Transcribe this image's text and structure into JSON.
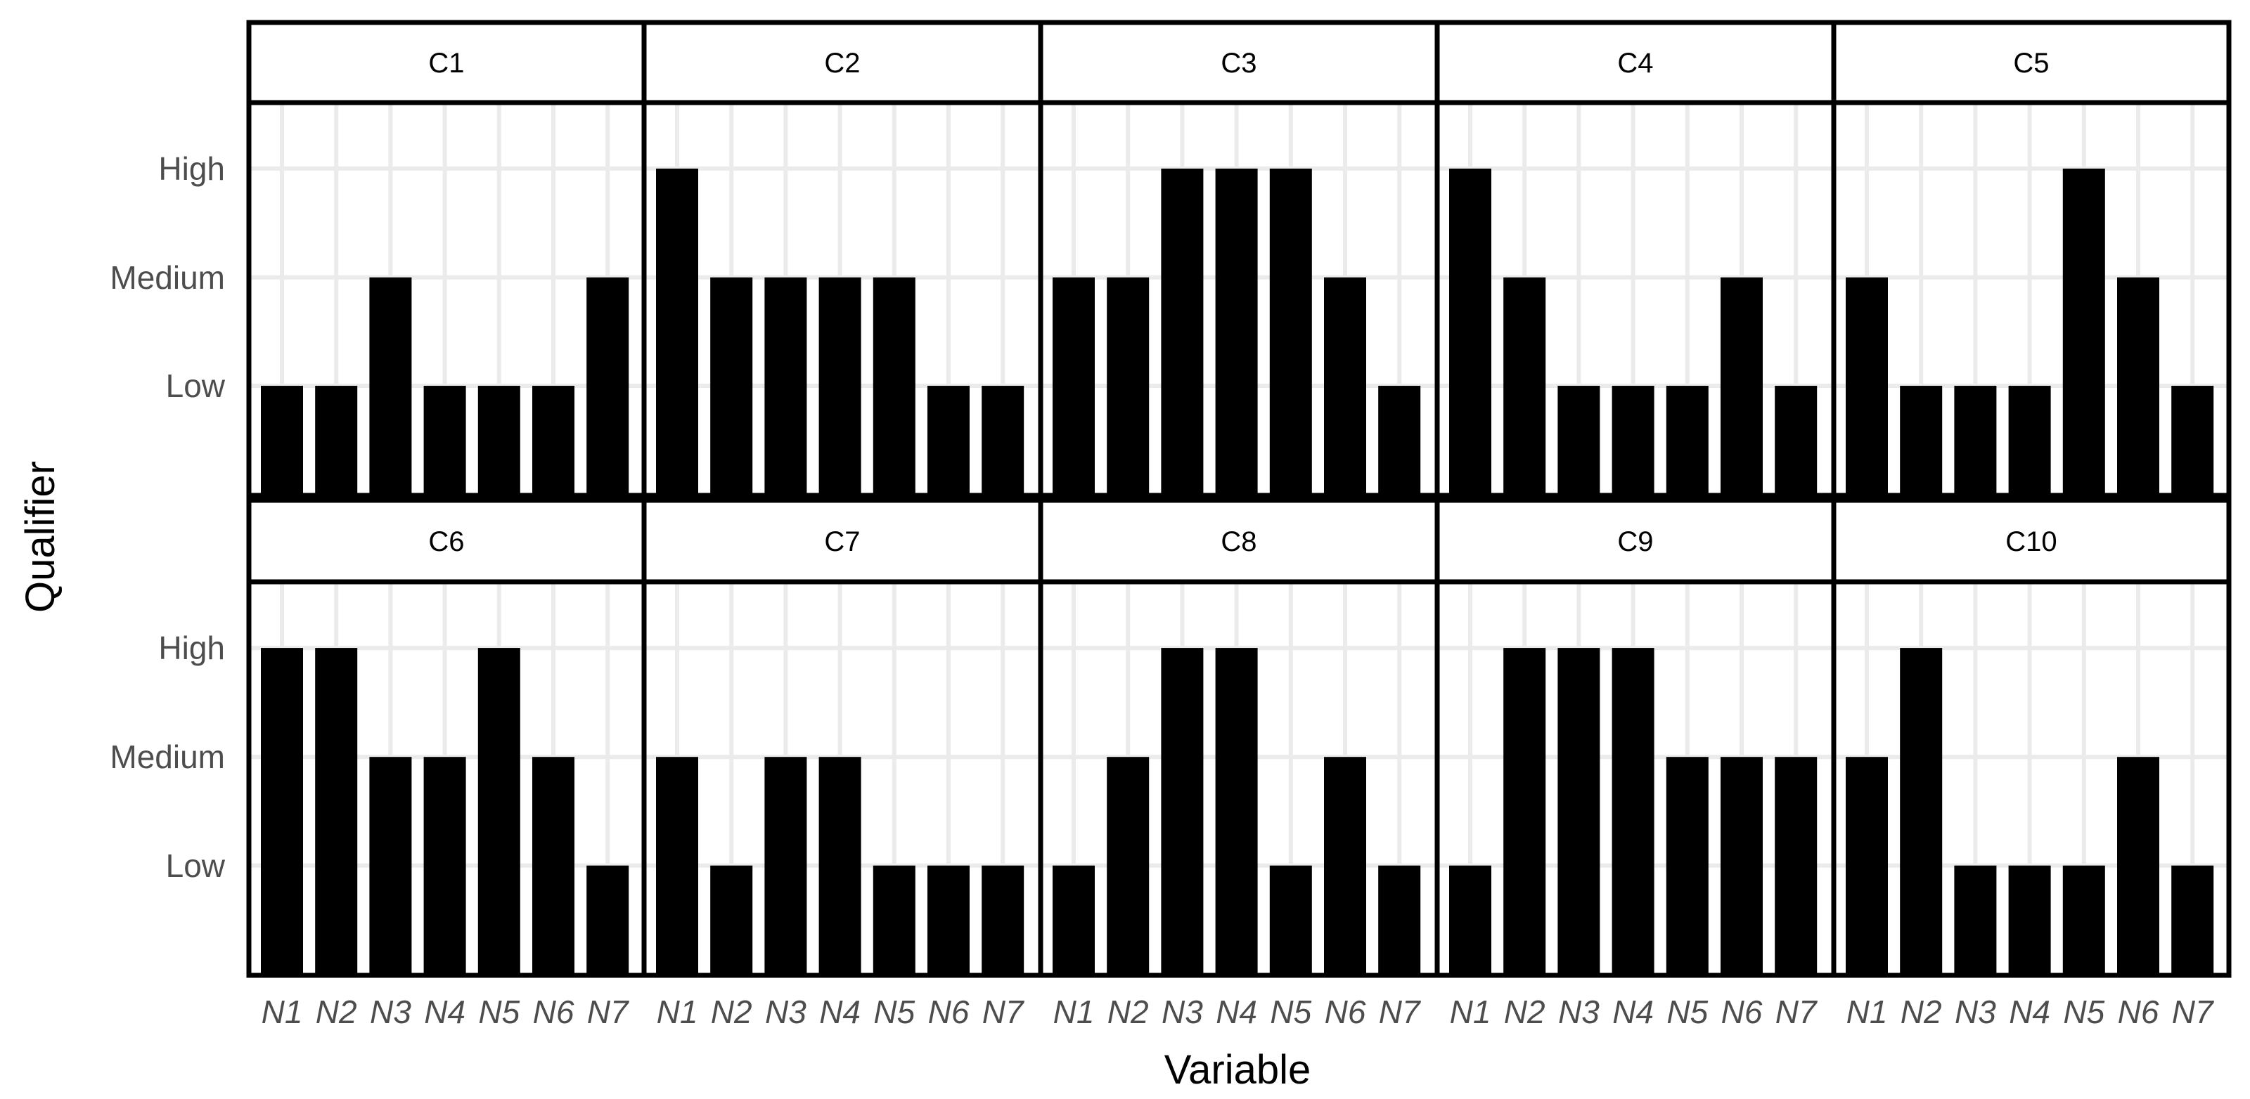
{
  "chart_data": {
    "type": "bar",
    "layout": "facet-grid-2x5",
    "xlabel": "Variable",
    "ylabel": "Qualifier",
    "categories": [
      "N1",
      "N2",
      "N3",
      "N4",
      "N5",
      "N6",
      "N7"
    ],
    "levels": [
      "Low",
      "Medium",
      "High"
    ],
    "grid": true,
    "colors": {
      "bar": "#000000",
      "grid": "#ebebeb",
      "tick_text": "#4d4d4d",
      "border": "#000000"
    },
    "panels": [
      {
        "name": "C1",
        "values": [
          "Low",
          "Low",
          "Medium",
          "Low",
          "Low",
          "Low",
          "Medium"
        ]
      },
      {
        "name": "C2",
        "values": [
          "High",
          "Medium",
          "Medium",
          "Medium",
          "Medium",
          "Low",
          "Low"
        ]
      },
      {
        "name": "C3",
        "values": [
          "Medium",
          "Medium",
          "High",
          "High",
          "High",
          "Medium",
          "Low"
        ]
      },
      {
        "name": "C4",
        "values": [
          "High",
          "Medium",
          "Low",
          "Low",
          "Low",
          "Medium",
          "Low"
        ]
      },
      {
        "name": "C5",
        "values": [
          "Medium",
          "Low",
          "Low",
          "Low",
          "High",
          "Medium",
          "Low"
        ]
      },
      {
        "name": "C6",
        "values": [
          "High",
          "High",
          "Medium",
          "Medium",
          "High",
          "Medium",
          "Low"
        ]
      },
      {
        "name": "C7",
        "values": [
          "Medium",
          "Low",
          "Medium",
          "Medium",
          "Low",
          "Low",
          "Low"
        ]
      },
      {
        "name": "C8",
        "values": [
          "Low",
          "Medium",
          "High",
          "High",
          "Low",
          "Medium",
          "Low"
        ]
      },
      {
        "name": "C9",
        "values": [
          "Low",
          "High",
          "High",
          "High",
          "Medium",
          "Medium",
          "Medium"
        ]
      },
      {
        "name": "C10",
        "values": [
          "Medium",
          "High",
          "Low",
          "Low",
          "Low",
          "Medium",
          "Low"
        ]
      }
    ]
  }
}
